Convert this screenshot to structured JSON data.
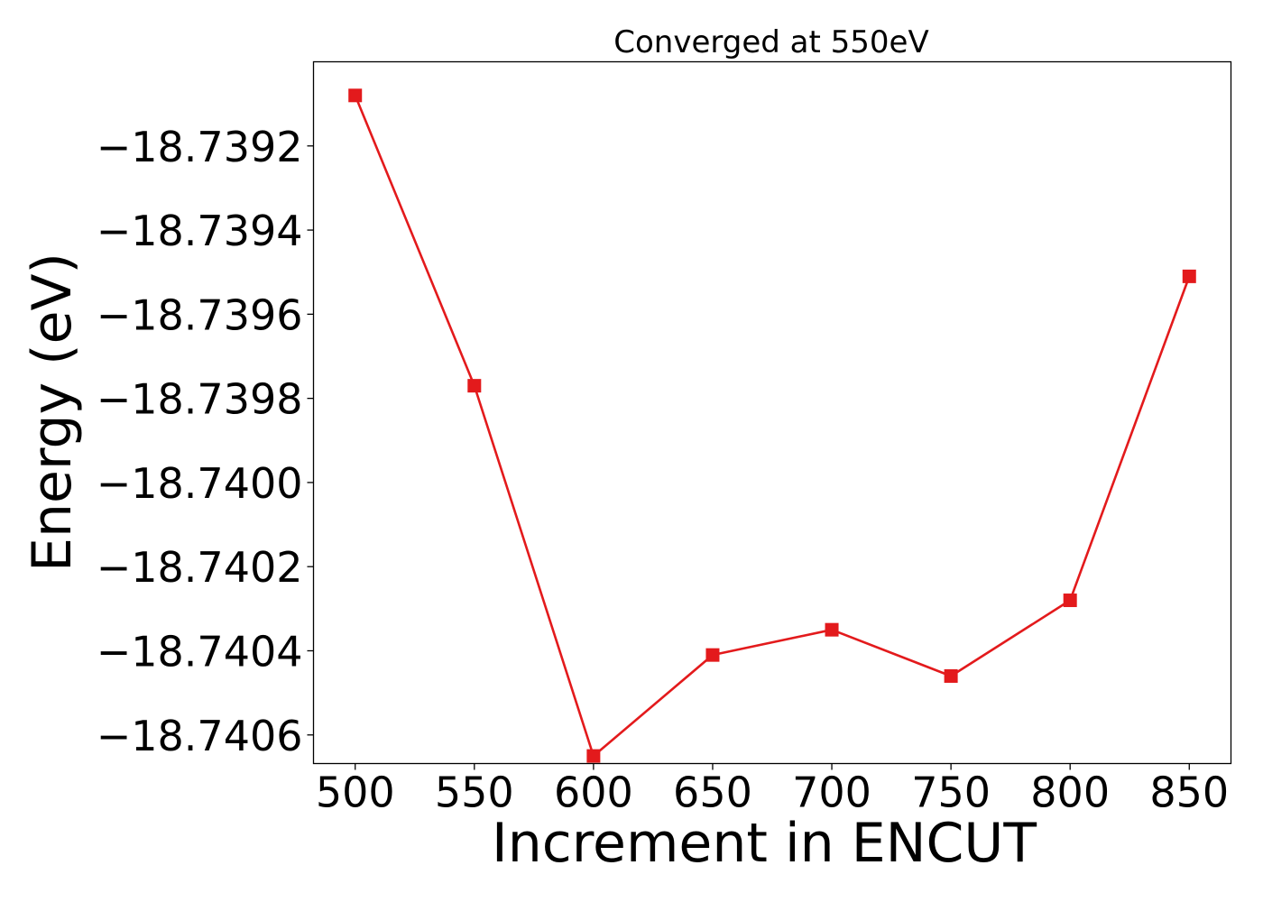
{
  "chart_data": {
    "type": "line",
    "title": "Converged at 550eV",
    "xlabel": "Increment in ENCUT",
    "ylabel": "Energy (eV)",
    "x": [
      500,
      550,
      600,
      650,
      700,
      750,
      800,
      850
    ],
    "series": [
      {
        "values": [
          -18.73908,
          -18.73977,
          -18.74065,
          -18.74041,
          -18.74035,
          -18.74046,
          -18.74028,
          -18.73951
        ],
        "color": "#e31a1c",
        "marker": "square"
      }
    ],
    "xticks": [
      500,
      550,
      600,
      650,
      700,
      750,
      800,
      850
    ],
    "xtick_labels": [
      "500",
      "550",
      "600",
      "650",
      "700",
      "750",
      "800",
      "850"
    ],
    "yticks": [
      -18.7392,
      -18.7394,
      -18.7396,
      -18.7398,
      -18.74,
      -18.7402,
      -18.7404,
      -18.7406
    ],
    "ytick_labels": [
      "−18.7392",
      "−18.7394",
      "−18.7396",
      "−18.7398",
      "−18.7400",
      "−18.7402",
      "−18.7404",
      "−18.7406"
    ],
    "xlim": [
      482.5,
      867.5
    ],
    "ylim": [
      -18.740668,
      -18.739
    ]
  }
}
